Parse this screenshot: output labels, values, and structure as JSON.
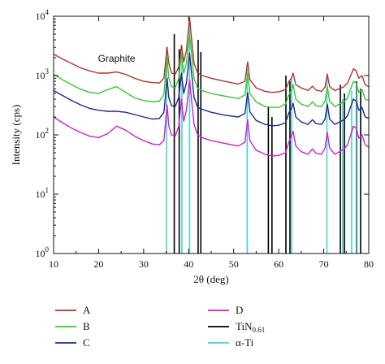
{
  "chart_data": {
    "type": "line",
    "title": "",
    "xlabel": "2θ (deg)",
    "ylabel": "Intensity (cps)",
    "xlim": [
      10,
      80
    ],
    "ylim": [
      1,
      10000
    ],
    "yscale": "log",
    "x_ticks": [
      10,
      20,
      30,
      40,
      50,
      60,
      70,
      80
    ],
    "y_ticks": [
      {
        "value": 1,
        "base": "10",
        "exp": "0"
      },
      {
        "value": 10,
        "base": "10",
        "exp": "1"
      },
      {
        "value": 100,
        "base": "10",
        "exp": "2"
      },
      {
        "value": 1000,
        "base": "10",
        "exp": "3"
      },
      {
        "value": 10000,
        "base": "10",
        "exp": "4"
      }
    ],
    "grid": false,
    "legend_position": "bottom",
    "annotations": [
      {
        "text": "Graphite",
        "x": 24,
        "y": 1700
      }
    ],
    "series": [
      {
        "name": "A",
        "color": "#b5322e",
        "points": [
          [
            10,
            2300
          ],
          [
            12,
            1900
          ],
          [
            14,
            1600
          ],
          [
            16,
            1350
          ],
          [
            18,
            1200
          ],
          [
            20,
            1100
          ],
          [
            22,
            1100
          ],
          [
            24,
            1150
          ],
          [
            26,
            1050
          ],
          [
            28,
            900
          ],
          [
            30,
            800
          ],
          [
            32,
            760
          ],
          [
            33.5,
            750
          ],
          [
            34.5,
            900
          ],
          [
            35.2,
            3000
          ],
          [
            35.6,
            1600
          ],
          [
            36.2,
            1100
          ],
          [
            37,
            1050
          ],
          [
            37.8,
            1400
          ],
          [
            38.4,
            3200
          ],
          [
            38.9,
            1700
          ],
          [
            39.5,
            2600
          ],
          [
            40.2,
            9500
          ],
          [
            40.6,
            4500
          ],
          [
            41.2,
            1600
          ],
          [
            42,
            1100
          ],
          [
            43,
            1000
          ],
          [
            45,
            900
          ],
          [
            48,
            800
          ],
          [
            51,
            720
          ],
          [
            52.5,
            800
          ],
          [
            53.1,
            1700
          ],
          [
            53.6,
            850
          ],
          [
            55,
            620
          ],
          [
            57,
            540
          ],
          [
            58.5,
            520
          ],
          [
            60,
            530
          ],
          [
            61.5,
            580
          ],
          [
            62.3,
            800
          ],
          [
            62.8,
            900
          ],
          [
            63.2,
            1100
          ],
          [
            63.8,
            700
          ],
          [
            65,
            620
          ],
          [
            66.5,
            560
          ],
          [
            67.5,
            660
          ],
          [
            68.3,
            570
          ],
          [
            69.5,
            540
          ],
          [
            70.3,
            640
          ],
          [
            70.8,
            1050
          ],
          [
            71.3,
            650
          ],
          [
            72.5,
            560
          ],
          [
            73.5,
            600
          ],
          [
            74.5,
            650
          ],
          [
            75.3,
            750
          ],
          [
            76,
            1000
          ],
          [
            76.6,
            1300
          ],
          [
            77.2,
            1200
          ],
          [
            77.8,
            900
          ],
          [
            78.5,
            1000
          ],
          [
            79.2,
            700
          ],
          [
            80,
            650
          ]
        ]
      },
      {
        "name": "B",
        "color": "#36c832",
        "points": [
          [
            10,
            1050
          ],
          [
            12,
            850
          ],
          [
            14,
            700
          ],
          [
            16,
            590
          ],
          [
            18,
            520
          ],
          [
            20,
            500
          ],
          [
            22,
            580
          ],
          [
            24,
            650
          ],
          [
            26,
            520
          ],
          [
            28,
            420
          ],
          [
            30,
            380
          ],
          [
            32,
            360
          ],
          [
            33.5,
            370
          ],
          [
            34.5,
            480
          ],
          [
            35.2,
            2000
          ],
          [
            35.6,
            900
          ],
          [
            36.2,
            650
          ],
          [
            37,
            620
          ],
          [
            37.8,
            900
          ],
          [
            38.4,
            2400
          ],
          [
            38.9,
            1100
          ],
          [
            39.5,
            1600
          ],
          [
            40.2,
            5000
          ],
          [
            40.6,
            2600
          ],
          [
            41.2,
            900
          ],
          [
            42,
            600
          ],
          [
            43,
            560
          ],
          [
            45,
            500
          ],
          [
            48,
            450
          ],
          [
            51,
            410
          ],
          [
            52.5,
            470
          ],
          [
            53.1,
            1100
          ],
          [
            53.6,
            500
          ],
          [
            55,
            360
          ],
          [
            57,
            300
          ],
          [
            58.5,
            290
          ],
          [
            60,
            290
          ],
          [
            61.5,
            330
          ],
          [
            62.3,
            480
          ],
          [
            62.8,
            560
          ],
          [
            63.2,
            700
          ],
          [
            63.8,
            400
          ],
          [
            65,
            330
          ],
          [
            66.5,
            300
          ],
          [
            67.5,
            360
          ],
          [
            68.3,
            310
          ],
          [
            69.5,
            300
          ],
          [
            70.3,
            370
          ],
          [
            70.8,
            650
          ],
          [
            71.3,
            370
          ],
          [
            72.5,
            300
          ],
          [
            73.5,
            330
          ],
          [
            74.5,
            360
          ],
          [
            75.3,
            420
          ],
          [
            76,
            600
          ],
          [
            76.6,
            800
          ],
          [
            77.2,
            750
          ],
          [
            77.8,
            520
          ],
          [
            78.5,
            580
          ],
          [
            79.2,
            400
          ],
          [
            80,
            380
          ]
        ]
      },
      {
        "name": "C",
        "color": "#1c2a8a",
        "points": [
          [
            10,
            560
          ],
          [
            12,
            460
          ],
          [
            14,
            380
          ],
          [
            16,
            320
          ],
          [
            18,
            280
          ],
          [
            20,
            260
          ],
          [
            22,
            250
          ],
          [
            24,
            250
          ],
          [
            26,
            240
          ],
          [
            28,
            220
          ],
          [
            30,
            200
          ],
          [
            32,
            185
          ],
          [
            33.5,
            190
          ],
          [
            34.5,
            240
          ],
          [
            35.2,
            900
          ],
          [
            35.6,
            420
          ],
          [
            36.2,
            310
          ],
          [
            37,
            300
          ],
          [
            37.8,
            430
          ],
          [
            38.4,
            1100
          ],
          [
            38.9,
            500
          ],
          [
            39.5,
            750
          ],
          [
            40.2,
            2400
          ],
          [
            40.6,
            1200
          ],
          [
            41.2,
            430
          ],
          [
            42,
            290
          ],
          [
            43,
            270
          ],
          [
            45,
            240
          ],
          [
            48,
            215
          ],
          [
            51,
            200
          ],
          [
            52.5,
            230
          ],
          [
            53.1,
            520
          ],
          [
            53.6,
            245
          ],
          [
            55,
            175
          ],
          [
            57,
            150
          ],
          [
            58.5,
            142
          ],
          [
            60,
            145
          ],
          [
            61.5,
            160
          ],
          [
            62.3,
            240
          ],
          [
            62.8,
            280
          ],
          [
            63.2,
            340
          ],
          [
            63.8,
            200
          ],
          [
            65,
            165
          ],
          [
            66.5,
            150
          ],
          [
            67.5,
            180
          ],
          [
            68.3,
            155
          ],
          [
            69.5,
            150
          ],
          [
            70.3,
            185
          ],
          [
            70.8,
            330
          ],
          [
            71.3,
            185
          ],
          [
            72.5,
            150
          ],
          [
            73.5,
            165
          ],
          [
            74.5,
            180
          ],
          [
            75.3,
            210
          ],
          [
            76,
            300
          ],
          [
            76.6,
            400
          ],
          [
            77.2,
            370
          ],
          [
            77.8,
            260
          ],
          [
            78.5,
            290
          ],
          [
            79.2,
            200
          ],
          [
            80,
            190
          ]
        ]
      },
      {
        "name": "D",
        "color": "#cc22cc",
        "points": [
          [
            10,
            200
          ],
          [
            12,
            160
          ],
          [
            14,
            130
          ],
          [
            16,
            110
          ],
          [
            18,
            95
          ],
          [
            20,
            90
          ],
          [
            22,
            105
          ],
          [
            24,
            140
          ],
          [
            26,
            120
          ],
          [
            28,
            95
          ],
          [
            30,
            80
          ],
          [
            32,
            70
          ],
          [
            33.5,
            68
          ],
          [
            34.5,
            80
          ],
          [
            35.2,
            320
          ],
          [
            35.6,
            140
          ],
          [
            36.2,
            100
          ],
          [
            37,
            95
          ],
          [
            37.8,
            140
          ],
          [
            38.4,
            400
          ],
          [
            38.9,
            170
          ],
          [
            39.5,
            260
          ],
          [
            40.2,
            850
          ],
          [
            40.6,
            420
          ],
          [
            41.2,
            150
          ],
          [
            42,
            100
          ],
          [
            43,
            90
          ],
          [
            45,
            80
          ],
          [
            48,
            72
          ],
          [
            51,
            65
          ],
          [
            52.5,
            75
          ],
          [
            53.1,
            180
          ],
          [
            53.6,
            80
          ],
          [
            55,
            55
          ],
          [
            57,
            47
          ],
          [
            58.5,
            44
          ],
          [
            60,
            45
          ],
          [
            61.5,
            50
          ],
          [
            62.3,
            78
          ],
          [
            62.8,
            95
          ],
          [
            63.2,
            115
          ],
          [
            63.8,
            65
          ],
          [
            65,
            52
          ],
          [
            66.5,
            47
          ],
          [
            67.5,
            58
          ],
          [
            68.3,
            49
          ],
          [
            69.5,
            47
          ],
          [
            70.3,
            60
          ],
          [
            70.8,
            110
          ],
          [
            71.3,
            60
          ],
          [
            72.5,
            47
          ],
          [
            73.5,
            52
          ],
          [
            74.5,
            58
          ],
          [
            75.3,
            68
          ],
          [
            76,
            100
          ],
          [
            76.6,
            140
          ],
          [
            77.2,
            130
          ],
          [
            77.8,
            88
          ],
          [
            78.5,
            100
          ],
          [
            79.2,
            68
          ],
          [
            80,
            62
          ]
        ]
      },
      {
        "name": "TiN<sub>0.61</sub>",
        "color": "#000000",
        "kind": "stick",
        "base": 1,
        "points": [
          [
            36.8,
            5000
          ],
          [
            37.9,
            2800
          ],
          [
            42.1,
            4000
          ],
          [
            42.7,
            2500
          ],
          [
            57.7,
            300
          ],
          [
            58.5,
            200
          ],
          [
            61.6,
            1000
          ],
          [
            62.5,
            800
          ],
          [
            73.7,
            700
          ],
          [
            74.6,
            500
          ],
          [
            77.3,
            800
          ],
          [
            78.2,
            600
          ]
        ]
      },
      {
        "name": "α-Ti",
        "color": "#44d4d4",
        "kind": "stick",
        "base": 1,
        "points": [
          [
            35.1,
            3000
          ],
          [
            38.5,
            3300
          ],
          [
            40.2,
            8000
          ],
          [
            53.0,
            1300
          ],
          [
            62.9,
            900
          ],
          [
            70.7,
            1100
          ],
          [
            74.2,
            400
          ],
          [
            76.2,
            550
          ],
          [
            77.4,
            700
          ]
        ]
      }
    ]
  }
}
